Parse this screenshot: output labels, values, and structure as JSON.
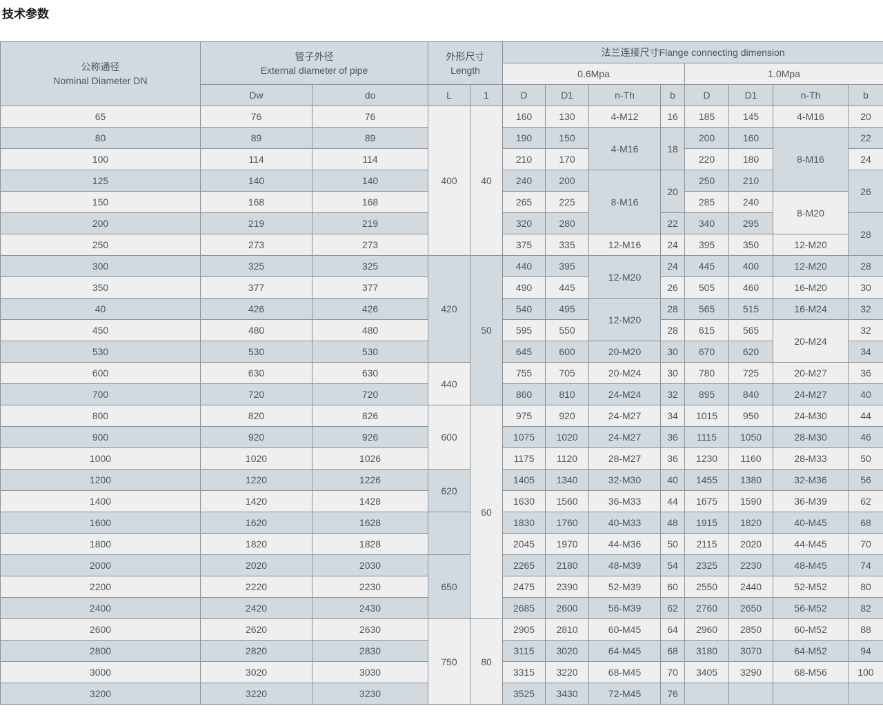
{
  "page_title": "技术参数",
  "colors": {
    "header-bg": "#d2d9df",
    "subheader-light-bg": "#efefef",
    "row-light-bg": "#efefef",
    "row-dark-bg": "#d2d9df",
    "border": "#8a9198",
    "text": "#4e555b",
    "title-text": "#1b1b1b"
  },
  "table": {
    "header": {
      "dn_zh": "公称通径",
      "dn_en": "Nominal Diameter DN",
      "pipe_zh": "管子外径",
      "pipe_en": "External diameter of pipe",
      "length_zh": "外形尺寸",
      "length_en": "Length",
      "flange": "法兰连接尺寸Flange connecting dimension",
      "p06": "0.6Mpa",
      "p10": "1.0Mpa",
      "sub": [
        "Dw",
        "do",
        "L",
        "1",
        "D",
        "D1",
        "n-Th",
        "b",
        "D",
        "D1",
        "n-Th",
        "b"
      ]
    },
    "rows": [
      {
        "cells": [
          "65",
          "76",
          "76",
          {
            "v": "400",
            "rs": 7
          },
          {
            "v": "40",
            "rs": 7
          },
          "160",
          "130",
          "4-M12",
          "16",
          "185",
          "145",
          "4-M16",
          "20"
        ]
      },
      {
        "cells": [
          "80",
          "89",
          "89",
          null,
          null,
          "190",
          "150",
          {
            "v": "4-M16",
            "rs": 2
          },
          {
            "v": "18",
            "rs": 2
          },
          "200",
          "160",
          {
            "v": "8-M16",
            "rs": 3
          },
          "22"
        ]
      },
      {
        "cells": [
          "100",
          "114",
          "114",
          null,
          null,
          "210",
          "170",
          null,
          null,
          "220",
          "180",
          null,
          "24"
        ]
      },
      {
        "cells": [
          "125",
          "140",
          "140",
          null,
          null,
          "240",
          "200",
          {
            "v": "8-M16",
            "rs": 3
          },
          {
            "v": "20",
            "rs": 2
          },
          "250",
          "210",
          null,
          {
            "v": "26",
            "rs": 2
          }
        ]
      },
      {
        "cells": [
          "150",
          "168",
          "168",
          null,
          null,
          "265",
          "225",
          null,
          null,
          "285",
          "240",
          {
            "v": "8-M20",
            "rs": 2
          },
          null
        ]
      },
      {
        "cells": [
          "200",
          "219",
          "219",
          null,
          null,
          "320",
          "280",
          null,
          "22",
          "340",
          "295",
          null,
          {
            "v": "28",
            "rs": 2
          }
        ]
      },
      {
        "cells": [
          "250",
          "273",
          "273",
          null,
          null,
          "375",
          "335",
          "12-M16",
          "24",
          "395",
          "350",
          "12-M20",
          null
        ]
      },
      {
        "cells": [
          "300",
          "325",
          "325",
          {
            "v": "420",
            "rs": 5
          },
          {
            "v": "50",
            "rs": 7
          },
          "440",
          "395",
          {
            "v": "12-M20",
            "rs": 2
          },
          "24",
          "445",
          "400",
          "12-M20",
          "28"
        ]
      },
      {
        "cells": [
          "350",
          "377",
          "377",
          null,
          null,
          "490",
          "445",
          null,
          "26",
          "505",
          "460",
          "16-M20",
          "30"
        ]
      },
      {
        "cells": [
          "40",
          "426",
          "426",
          null,
          null,
          "540",
          "495",
          {
            "v": "12-M20",
            "rs": 2
          },
          "28",
          "565",
          "515",
          "16-M24",
          "32"
        ]
      },
      {
        "cells": [
          "450",
          "480",
          "480",
          null,
          null,
          "595",
          "550",
          null,
          "28",
          "615",
          "565",
          {
            "v": "20-M24",
            "rs": 2
          },
          "32"
        ]
      },
      {
        "cells": [
          "530",
          "530",
          "530",
          null,
          null,
          "645",
          "600",
          "20-M20",
          "30",
          "670",
          "620",
          null,
          "34"
        ]
      },
      {
        "cells": [
          "600",
          "630",
          "630",
          {
            "v": "440",
            "rs": 2
          },
          null,
          "755",
          "705",
          "20-M24",
          "30",
          "780",
          "725",
          "20-M27",
          "36"
        ]
      },
      {
        "cells": [
          "700",
          "720",
          "720",
          null,
          null,
          "860",
          "810",
          "24-M24",
          "32",
          "895",
          "840",
          "24-M27",
          "40"
        ]
      },
      {
        "cells": [
          "800",
          "820",
          "826",
          {
            "v": "600",
            "rs": 3
          },
          {
            "v": "60",
            "rs": 10
          },
          "975",
          "920",
          "24-M27",
          "34",
          "1015",
          "950",
          "24-M30",
          "44"
        ]
      },
      {
        "cells": [
          "900",
          "920",
          "926",
          null,
          null,
          "1075",
          "1020",
          "24-M27",
          "36",
          "1115",
          "1050",
          "28-M30",
          "46"
        ]
      },
      {
        "cells": [
          "1000",
          "1020",
          "1026",
          null,
          null,
          "1175",
          "1120",
          "28-M27",
          "36",
          "1230",
          "1160",
          "28-M33",
          "50"
        ]
      },
      {
        "cells": [
          "1200",
          "1220",
          "1226",
          {
            "v": "620",
            "rs": 2
          },
          null,
          "1405",
          "1340",
          "32-M30",
          "40",
          "1455",
          "1380",
          "32-M36",
          "56"
        ]
      },
      {
        "cells": [
          "1400",
          "1420",
          "1428",
          null,
          null,
          "1630",
          "1560",
          "36-M33",
          "44",
          "1675",
          "1590",
          "36-M39",
          "62"
        ]
      },
      {
        "cells": [
          "1600",
          "1620",
          "1628",
          {
            "v": "",
            "rs": 2
          },
          null,
          "1830",
          "1760",
          "40-M33",
          "48",
          "1915",
          "1820",
          "40-M45",
          "68"
        ]
      },
      {
        "cells": [
          "1800",
          "1820",
          "1828",
          null,
          null,
          "2045",
          "1970",
          "44-M36",
          "50",
          "2115",
          "2020",
          "44-M45",
          "70"
        ]
      },
      {
        "cells": [
          "2000",
          "2020",
          "2030",
          {
            "v": "650",
            "rs": 3
          },
          null,
          "2265",
          "2180",
          "48-M39",
          "54",
          "2325",
          "2230",
          "48-M45",
          "74"
        ]
      },
      {
        "cells": [
          "2200",
          "2220",
          "2230",
          null,
          null,
          "2475",
          "2390",
          "52-M39",
          "60",
          "2550",
          "2440",
          "52-M52",
          "80"
        ]
      },
      {
        "cells": [
          "2400",
          "2420",
          "2430",
          null,
          null,
          "2685",
          "2600",
          "56-M39",
          "62",
          "2760",
          "2650",
          "56-M52",
          "82"
        ]
      },
      {
        "cells": [
          "2600",
          "2620",
          "2630",
          {
            "v": "750",
            "rs": 4
          },
          {
            "v": "80",
            "rs": 4
          },
          "2905",
          "2810",
          "60-M45",
          "64",
          "2960",
          "2850",
          "60-M52",
          "88"
        ]
      },
      {
        "cells": [
          "2800",
          "2820",
          "2830",
          null,
          null,
          "3115",
          "3020",
          "64-M45",
          "68",
          "3180",
          "3070",
          "64-M52",
          "94"
        ]
      },
      {
        "cells": [
          "3000",
          "3020",
          "3030",
          null,
          null,
          "3315",
          "3220",
          "68-M45",
          "70",
          "3405",
          "3290",
          "68-M56",
          "100"
        ]
      },
      {
        "cells": [
          "3200",
          "3220",
          "3230",
          null,
          null,
          "3525",
          "3430",
          "72-M45",
          "76",
          "",
          "",
          "",
          ""
        ]
      }
    ]
  }
}
